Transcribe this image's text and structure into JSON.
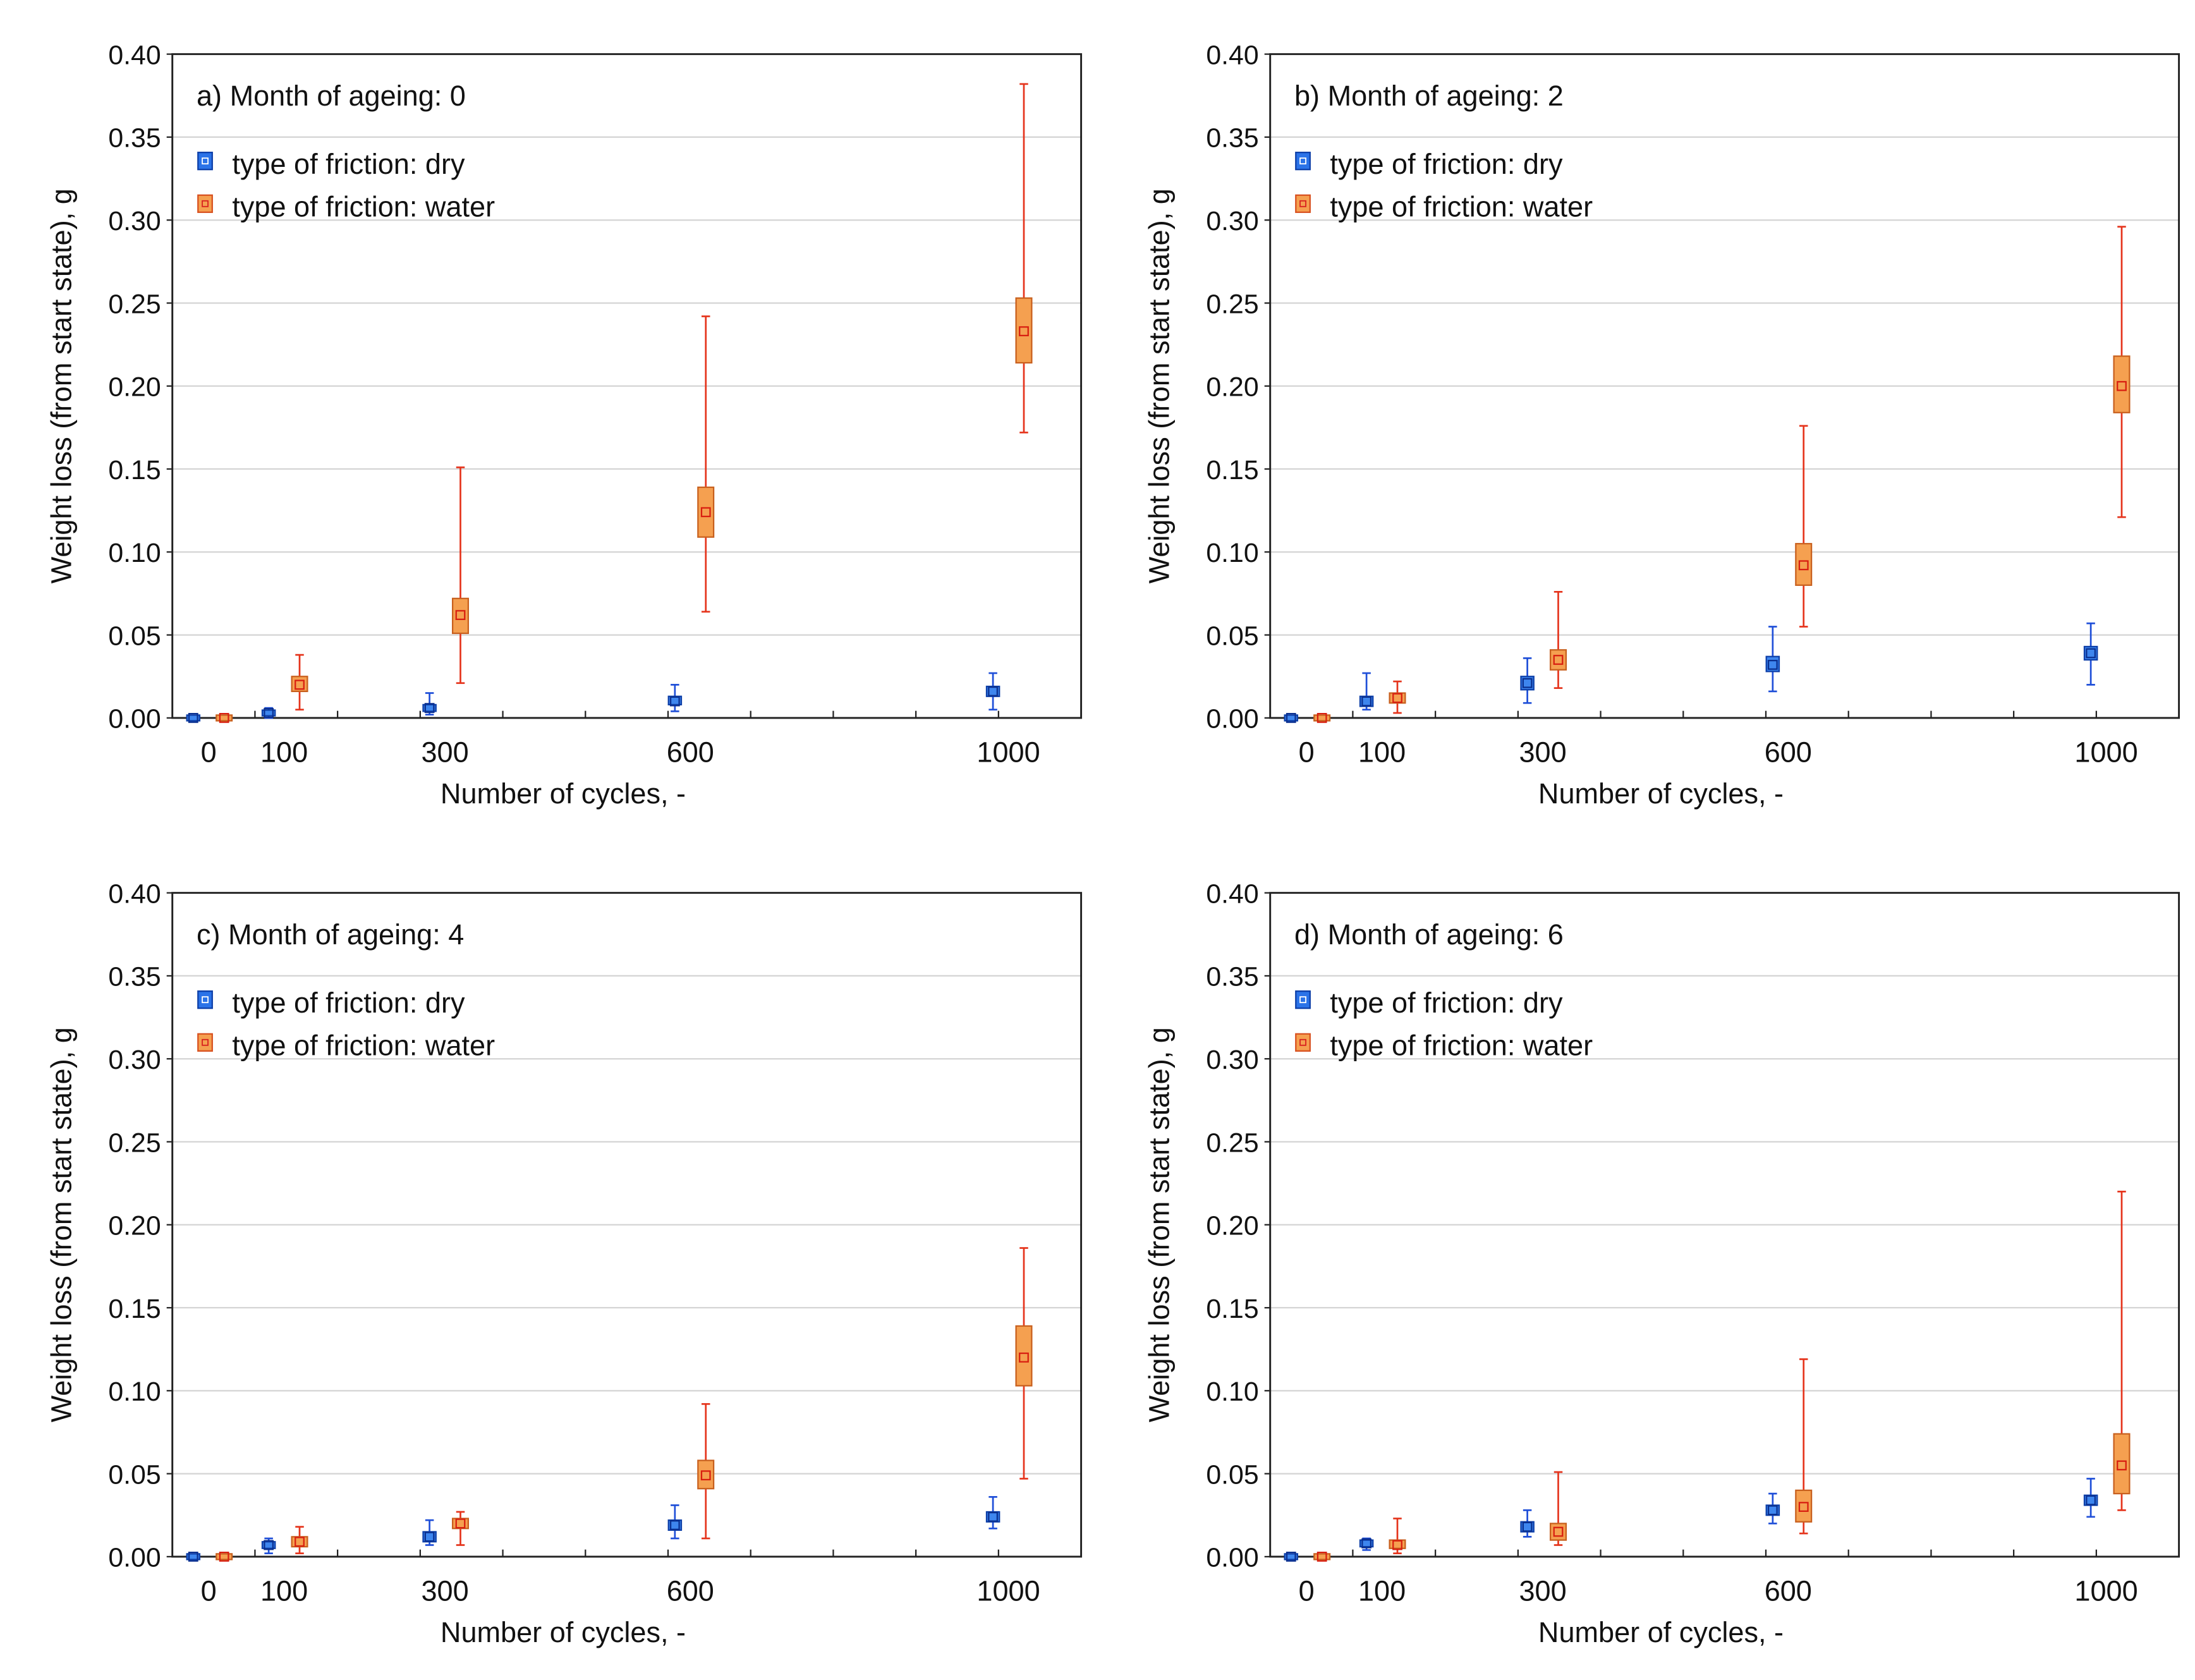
{
  "chart_data": [
    {
      "type": "boxplot",
      "panel_label": "a) Month of ageing: 0",
      "xlabel": "Number of cycles, -",
      "ylabel": "Weight loss (from start state), g",
      "ylim": [
        0,
        0.4
      ],
      "yticks": [
        "0.00",
        "0.05",
        "0.10",
        "0.15",
        "0.20",
        "0.25",
        "0.30",
        "0.35",
        "0.40"
      ],
      "categories": [
        "0",
        "100",
        "300",
        "600",
        "1000"
      ],
      "series": [
        {
          "name": "type of friction: dry",
          "color": "#1f5fe0",
          "data": [
            {
              "x": "0",
              "mean": 0.0,
              "box": [
                0.0,
                0.0
              ],
              "whisker": [
                0.0,
                0.0
              ]
            },
            {
              "x": "100",
              "mean": 0.003,
              "box": [
                0.002,
                0.004
              ],
              "whisker": [
                0.0,
                0.006
              ]
            },
            {
              "x": "300",
              "mean": 0.006,
              "box": [
                0.004,
                0.008
              ],
              "whisker": [
                0.002,
                0.015
              ]
            },
            {
              "x": "600",
              "mean": 0.01,
              "box": [
                0.008,
                0.013
              ],
              "whisker": [
                0.004,
                0.02
              ]
            },
            {
              "x": "1000",
              "mean": 0.016,
              "box": [
                0.013,
                0.019
              ],
              "whisker": [
                0.005,
                0.027
              ]
            }
          ]
        },
        {
          "name": "type of friction: water",
          "color": "#f08a30",
          "data": [
            {
              "x": "0",
              "mean": 0.0,
              "box": [
                0.0,
                0.0
              ],
              "whisker": [
                0.0,
                0.0
              ]
            },
            {
              "x": "100",
              "mean": 0.02,
              "box": [
                0.016,
                0.025
              ],
              "whisker": [
                0.005,
                0.038
              ]
            },
            {
              "x": "300",
              "mean": 0.062,
              "box": [
                0.051,
                0.072
              ],
              "whisker": [
                0.021,
                0.151
              ]
            },
            {
              "x": "600",
              "mean": 0.124,
              "box": [
                0.109,
                0.139
              ],
              "whisker": [
                0.064,
                0.242
              ]
            },
            {
              "x": "1000",
              "mean": 0.233,
              "box": [
                0.214,
                0.253
              ],
              "whisker": [
                0.172,
                0.382
              ]
            }
          ]
        }
      ]
    },
    {
      "type": "boxplot",
      "panel_label": "b) Month of ageing: 2",
      "xlabel": "Number of cycles, -",
      "ylabel": "Weight loss (from start state), g",
      "ylim": [
        0,
        0.4
      ],
      "yticks": [
        "0.00",
        "0.05",
        "0.10",
        "0.15",
        "0.20",
        "0.25",
        "0.30",
        "0.35",
        "0.40"
      ],
      "categories": [
        "0",
        "100",
        "300",
        "600",
        "1000"
      ],
      "series": [
        {
          "name": "type of friction: dry",
          "color": "#1f5fe0",
          "data": [
            {
              "x": "0",
              "mean": 0.0,
              "box": [
                0.0,
                0.0
              ],
              "whisker": [
                0.0,
                0.0
              ]
            },
            {
              "x": "100",
              "mean": 0.01,
              "box": [
                0.007,
                0.013
              ],
              "whisker": [
                0.005,
                0.027
              ]
            },
            {
              "x": "300",
              "mean": 0.021,
              "box": [
                0.017,
                0.025
              ],
              "whisker": [
                0.009,
                0.036
              ]
            },
            {
              "x": "600",
              "mean": 0.032,
              "box": [
                0.028,
                0.037
              ],
              "whisker": [
                0.016,
                0.055
              ]
            },
            {
              "x": "1000",
              "mean": 0.039,
              "box": [
                0.035,
                0.043
              ],
              "whisker": [
                0.02,
                0.057
              ]
            }
          ]
        },
        {
          "name": "type of friction: water",
          "color": "#f08a30",
          "data": [
            {
              "x": "0",
              "mean": 0.0,
              "box": [
                0.0,
                0.0
              ],
              "whisker": [
                0.0,
                0.0
              ]
            },
            {
              "x": "100",
              "mean": 0.012,
              "box": [
                0.009,
                0.015
              ],
              "whisker": [
                0.003,
                0.022
              ]
            },
            {
              "x": "300",
              "mean": 0.035,
              "box": [
                0.029,
                0.041
              ],
              "whisker": [
                0.018,
                0.076
              ]
            },
            {
              "x": "600",
              "mean": 0.092,
              "box": [
                0.08,
                0.105
              ],
              "whisker": [
                0.055,
                0.176
              ]
            },
            {
              "x": "1000",
              "mean": 0.2,
              "box": [
                0.184,
                0.218
              ],
              "whisker": [
                0.121,
                0.296
              ]
            }
          ]
        }
      ]
    },
    {
      "type": "boxplot",
      "panel_label": "c) Month of ageing: 4",
      "xlabel": "Number of cycles, -",
      "ylabel": "Weight loss (from start state), g",
      "ylim": [
        0,
        0.4
      ],
      "yticks": [
        "0.00",
        "0.05",
        "0.10",
        "0.15",
        "0.20",
        "0.25",
        "0.30",
        "0.35",
        "0.40"
      ],
      "categories": [
        "0",
        "100",
        "300",
        "600",
        "1000"
      ],
      "series": [
        {
          "name": "type of friction: dry",
          "color": "#1f5fe0",
          "data": [
            {
              "x": "0",
              "mean": 0.0,
              "box": [
                0.0,
                0.0
              ],
              "whisker": [
                0.0,
                0.0
              ]
            },
            {
              "x": "100",
              "mean": 0.007,
              "box": [
                0.005,
                0.009
              ],
              "whisker": [
                0.002,
                0.011
              ]
            },
            {
              "x": "300",
              "mean": 0.012,
              "box": [
                0.009,
                0.015
              ],
              "whisker": [
                0.007,
                0.022
              ]
            },
            {
              "x": "600",
              "mean": 0.019,
              "box": [
                0.016,
                0.022
              ],
              "whisker": [
                0.011,
                0.031
              ]
            },
            {
              "x": "1000",
              "mean": 0.024,
              "box": [
                0.021,
                0.027
              ],
              "whisker": [
                0.017,
                0.036
              ]
            }
          ]
        },
        {
          "name": "type of friction: water",
          "color": "#f08a30",
          "data": [
            {
              "x": "0",
              "mean": 0.0,
              "box": [
                0.0,
                0.0
              ],
              "whisker": [
                0.0,
                0.0
              ]
            },
            {
              "x": "100",
              "mean": 0.009,
              "box": [
                0.006,
                0.012
              ],
              "whisker": [
                0.002,
                0.018
              ]
            },
            {
              "x": "300",
              "mean": 0.02,
              "box": [
                0.017,
                0.023
              ],
              "whisker": [
                0.007,
                0.027
              ]
            },
            {
              "x": "600",
              "mean": 0.049,
              "box": [
                0.041,
                0.058
              ],
              "whisker": [
                0.011,
                0.092
              ]
            },
            {
              "x": "1000",
              "mean": 0.12,
              "box": [
                0.103,
                0.139
              ],
              "whisker": [
                0.047,
                0.186
              ]
            }
          ]
        }
      ]
    },
    {
      "type": "boxplot",
      "panel_label": "d) Month of ageing: 6",
      "xlabel": "Number of cycles, -",
      "ylabel": "Weight loss (from start state), g",
      "ylim": [
        0,
        0.4
      ],
      "yticks": [
        "0.00",
        "0.05",
        "0.10",
        "0.15",
        "0.20",
        "0.25",
        "0.30",
        "0.35",
        "0.40"
      ],
      "categories": [
        "0",
        "100",
        "300",
        "600",
        "1000"
      ],
      "series": [
        {
          "name": "type of friction: dry",
          "color": "#1f5fe0",
          "data": [
            {
              "x": "0",
              "mean": 0.0,
              "box": [
                0.0,
                0.0
              ],
              "whisker": [
                0.0,
                0.0
              ]
            },
            {
              "x": "100",
              "mean": 0.008,
              "box": [
                0.006,
                0.01
              ],
              "whisker": [
                0.004,
                0.011
              ]
            },
            {
              "x": "300",
              "mean": 0.018,
              "box": [
                0.015,
                0.021
              ],
              "whisker": [
                0.012,
                0.028
              ]
            },
            {
              "x": "600",
              "mean": 0.028,
              "box": [
                0.025,
                0.031
              ],
              "whisker": [
                0.02,
                0.038
              ]
            },
            {
              "x": "1000",
              "mean": 0.034,
              "box": [
                0.031,
                0.037
              ],
              "whisker": [
                0.024,
                0.047
              ]
            }
          ]
        },
        {
          "name": "type of friction: water",
          "color": "#f08a30",
          "data": [
            {
              "x": "0",
              "mean": 0.0,
              "box": [
                0.0,
                0.0
              ],
              "whisker": [
                0.0,
                0.0
              ]
            },
            {
              "x": "100",
              "mean": 0.007,
              "box": [
                0.005,
                0.01
              ],
              "whisker": [
                0.002,
                0.023
              ]
            },
            {
              "x": "300",
              "mean": 0.015,
              "box": [
                0.01,
                0.02
              ],
              "whisker": [
                0.007,
                0.051
              ]
            },
            {
              "x": "600",
              "mean": 0.03,
              "box": [
                0.021,
                0.04
              ],
              "whisker": [
                0.014,
                0.119
              ]
            },
            {
              "x": "1000",
              "mean": 0.055,
              "box": [
                0.038,
                0.074
              ],
              "whisker": [
                0.028,
                0.22
              ]
            }
          ]
        }
      ]
    }
  ]
}
